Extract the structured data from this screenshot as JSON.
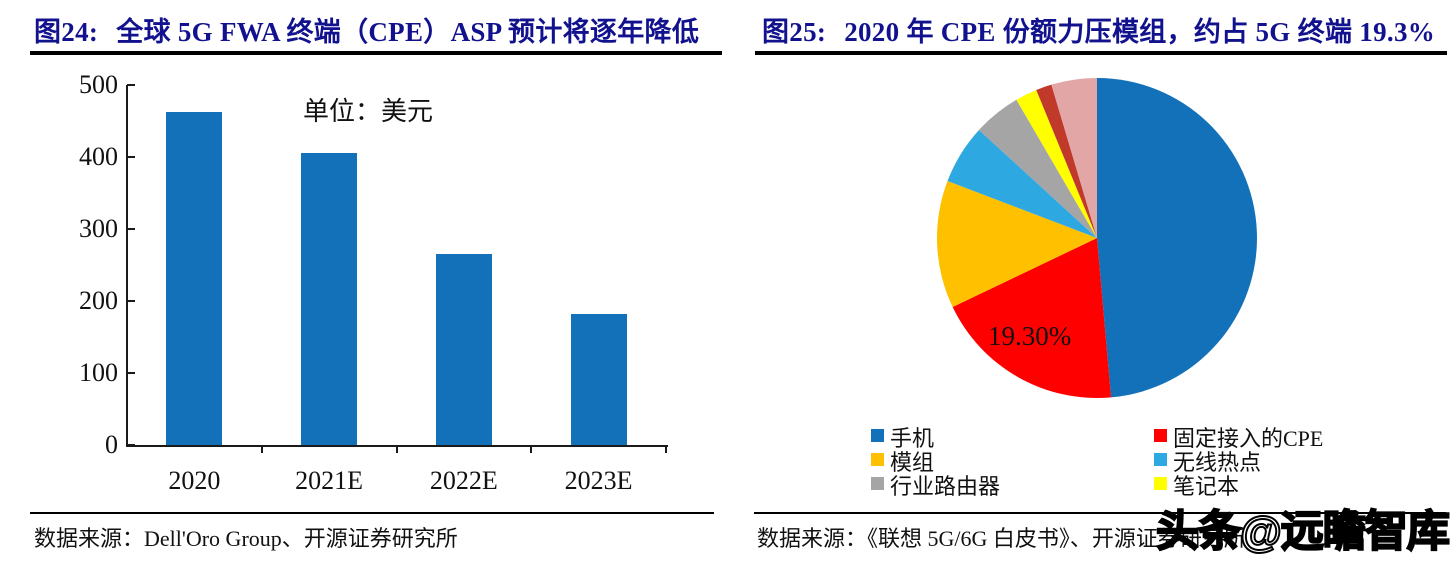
{
  "colors": {
    "title_navy": "#12128F",
    "axis_black": "#1a1a1a",
    "bar_blue": "#1271B8"
  },
  "left_panel": {
    "title_prefix": "图24:",
    "title": "全球 5G FWA 终端（CPE）ASP 预计将逐年降低",
    "unit_label": "单位：美元",
    "source": "数据来源：Dell'Oro Group、开源证券研究所"
  },
  "right_panel": {
    "title_prefix": "图25:",
    "title": "2020 年 CPE 份额力压模组，约占 5G 终端 19.3%",
    "pie_label": "19.30%",
    "source": "数据来源：《联想 5G/6G 白皮书》、开源证券研究所",
    "watermark": "头条@远瞻智库"
  },
  "chart_data": [
    {
      "type": "bar",
      "title": "全球 5G FWA 终端（CPE）ASP 预计将逐年降低",
      "unit": "美元",
      "categories": [
        "2020",
        "2021E",
        "2022E",
        "2023E"
      ],
      "values": [
        462,
        405,
        265,
        182
      ],
      "bar_color": "#1271B8",
      "xlabel": "",
      "ylabel": "",
      "ylim": [
        0,
        500
      ],
      "y_ticks": [
        0,
        100,
        200,
        300,
        400,
        500
      ],
      "grid": false,
      "legend": "none"
    },
    {
      "type": "pie",
      "title": "2020 年 CPE 份额力压模组，约占 5G 终端 19.3%",
      "start_angle": "12-oclock",
      "direction": "clockwise",
      "data_label": {
        "text": "19.30%",
        "slice": "固定接入的CPE"
      },
      "slices": [
        {
          "label": "手机",
          "value": 48.6,
          "color": "#1271B8"
        },
        {
          "label": "固定接入的CPE",
          "value": 19.3,
          "color": "#FE0000"
        },
        {
          "label": "模组",
          "value": 12.9,
          "color": "#FFC000"
        },
        {
          "label": "无线热点",
          "value": 6.0,
          "color": "#2EA8E0"
        },
        {
          "label": "行业路由器",
          "value": 4.8,
          "color": "#A5A5A5"
        },
        {
          "label": "笔记本",
          "value": 2.2,
          "color": "#FFFF00"
        },
        {
          "label": "",
          "value": 1.6,
          "color": "#C0392B"
        },
        {
          "label": "",
          "value": 4.6,
          "color": "#E2A6A6"
        }
      ],
      "legend": {
        "position": "bottom",
        "col1": [
          {
            "label": "手机",
            "color": "#1271B8"
          },
          {
            "label": "模组",
            "color": "#FFC000"
          },
          {
            "label": "行业路由器",
            "color": "#A5A5A5"
          }
        ],
        "col2": [
          {
            "label": "固定接入的CPE",
            "color": "#FE0000"
          },
          {
            "label": "无线热点",
            "color": "#2EA8E0"
          },
          {
            "label": "笔记本",
            "color": "#FFFF00"
          }
        ]
      }
    }
  ]
}
